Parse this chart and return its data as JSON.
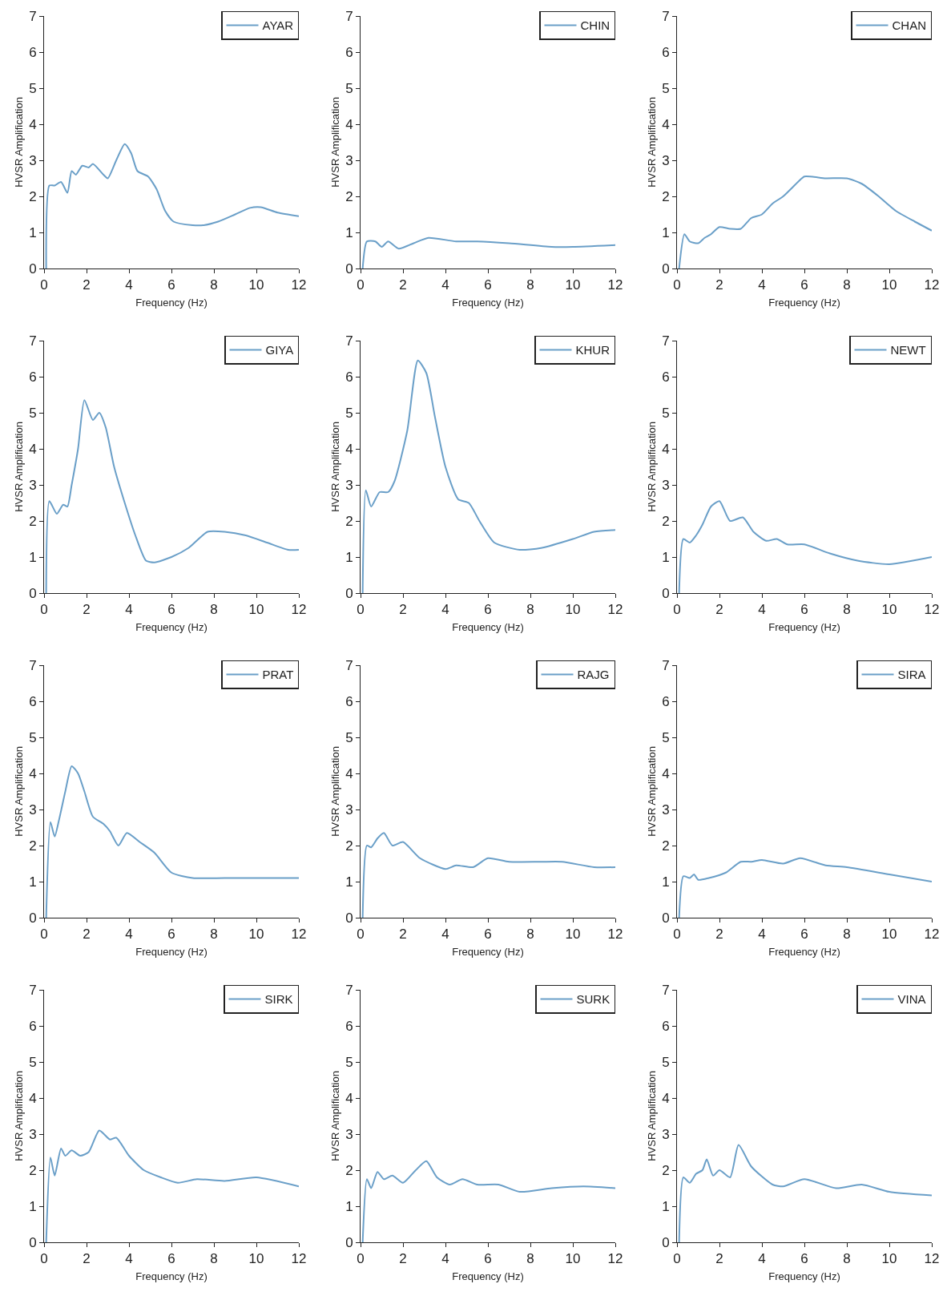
{
  "chart_data": [
    {
      "type": "line",
      "xlabel": "Frequency (Hz)",
      "ylabel": "HVSR Amplification",
      "xlim": [
        0,
        12
      ],
      "xticks": [
        0,
        2,
        4,
        6,
        8,
        10,
        12
      ],
      "ylim": [
        0,
        7
      ],
      "yticks": [
        0,
        1,
        2,
        3,
        4,
        5,
        6,
        7
      ],
      "legend": "top right",
      "series": [
        {
          "name": "AYAR",
          "color": "#6a9fc8",
          "x": [
            0.1,
            0.25,
            0.5,
            0.8,
            1.1,
            1.3,
            1.5,
            1.8,
            2.1,
            2.3,
            2.8,
            3.0,
            3.4,
            3.8,
            4.1,
            4.4,
            4.9,
            5.3,
            5.7,
            6.1,
            7,
            7.5,
            8.2,
            9,
            9.7,
            10.2,
            11,
            12
          ],
          "values": [
            0,
            2.3,
            2.3,
            2.4,
            2.1,
            2.7,
            2.6,
            2.85,
            2.8,
            2.9,
            2.6,
            2.5,
            3.0,
            3.45,
            3.2,
            2.7,
            2.55,
            2.2,
            1.6,
            1.3,
            1.2,
            1.2,
            1.3,
            1.5,
            1.68,
            1.7,
            1.55,
            1.45
          ]
        }
      ]
    },
    {
      "type": "line",
      "xlabel": "Frequency (Hz)",
      "ylabel": "HVSR Amplification",
      "xlim": [
        0,
        12
      ],
      "xticks": [
        0,
        2,
        4,
        6,
        8,
        10,
        12
      ],
      "ylim": [
        0,
        7
      ],
      "yticks": [
        0,
        1,
        2,
        3,
        4,
        5,
        6,
        7
      ],
      "legend": "top right",
      "series": [
        {
          "name": "CHIN",
          "color": "#6a9fc8",
          "x": [
            0.1,
            0.3,
            0.7,
            1.0,
            1.3,
            1.8,
            2.5,
            3.2,
            4.5,
            5.5,
            7,
            9,
            10,
            12
          ],
          "values": [
            0,
            0.75,
            0.75,
            0.6,
            0.75,
            0.55,
            0.7,
            0.85,
            0.75,
            0.75,
            0.7,
            0.6,
            0.6,
            0.65
          ]
        }
      ]
    },
    {
      "type": "line",
      "xlabel": "Frequency (Hz)",
      "ylabel": "HVSR Amplification",
      "xlim": [
        0,
        12
      ],
      "xticks": [
        0,
        2,
        4,
        6,
        8,
        10,
        12
      ],
      "ylim": [
        0,
        7
      ],
      "yticks": [
        0,
        1,
        2,
        3,
        4,
        5,
        6,
        7
      ],
      "legend": "top right",
      "series": [
        {
          "name": "CHAN",
          "color": "#6a9fc8",
          "x": [
            0.1,
            0.35,
            0.6,
            1.0,
            1.3,
            1.6,
            2.0,
            2.5,
            3.0,
            3.5,
            4,
            4.5,
            5,
            5.7,
            6,
            7,
            8,
            8.7,
            9.5,
            10.3,
            11.2,
            12
          ],
          "values": [
            0,
            0.95,
            0.75,
            0.7,
            0.85,
            0.95,
            1.15,
            1.1,
            1.1,
            1.4,
            1.5,
            1.8,
            2.0,
            2.4,
            2.55,
            2.5,
            2.5,
            2.35,
            2.0,
            1.6,
            1.3,
            1.05
          ]
        }
      ]
    },
    {
      "type": "line",
      "xlabel": "Frequency (Hz)",
      "ylabel": "HVSR Amplification",
      "xlim": [
        0,
        12
      ],
      "xticks": [
        0,
        2,
        4,
        6,
        8,
        10,
        12
      ],
      "ylim": [
        0,
        7
      ],
      "yticks": [
        0,
        1,
        2,
        3,
        4,
        5,
        6,
        7
      ],
      "legend": "top right",
      "series": [
        {
          "name": "GIYA",
          "color": "#6a9fc8",
          "x": [
            0.1,
            0.25,
            0.6,
            0.9,
            1.1,
            1.3,
            1.6,
            1.9,
            2.3,
            2.6,
            2.9,
            3.3,
            3.8,
            4.3,
            4.8,
            5.2,
            6,
            6.8,
            7.7,
            8.5,
            9.5,
            10.5,
            11.5,
            12
          ],
          "values": [
            0,
            2.55,
            2.2,
            2.45,
            2.4,
            3.0,
            4.0,
            5.35,
            4.8,
            5.0,
            4.6,
            3.5,
            2.5,
            1.6,
            0.9,
            0.85,
            1.0,
            1.25,
            1.7,
            1.7,
            1.6,
            1.4,
            1.2,
            1.2
          ]
        }
      ]
    },
    {
      "type": "line",
      "xlabel": "Frequency (Hz)",
      "ylabel": "HVSR Amplification",
      "xlim": [
        0,
        12
      ],
      "xticks": [
        0,
        2,
        4,
        6,
        8,
        10,
        12
      ],
      "ylim": [
        0,
        7
      ],
      "yticks": [
        0,
        1,
        2,
        3,
        4,
        5,
        6,
        7
      ],
      "legend": "top right",
      "series": [
        {
          "name": "KHUR",
          "color": "#6a9fc8",
          "x": [
            0.1,
            0.25,
            0.5,
            0.9,
            1.3,
            1.6,
            2.2,
            2.7,
            3.1,
            3.5,
            4.0,
            4.6,
            5.1,
            5.6,
            6.3,
            7.5,
            8.5,
            10,
            11,
            12
          ],
          "values": [
            0,
            2.85,
            2.4,
            2.8,
            2.8,
            3.1,
            4.5,
            6.45,
            6.1,
            4.9,
            3.5,
            2.6,
            2.5,
            2.0,
            1.4,
            1.2,
            1.25,
            1.5,
            1.7,
            1.75
          ]
        }
      ]
    },
    {
      "type": "line",
      "xlabel": "Frequency (Hz)",
      "ylabel": "HVSR Amplification",
      "xlim": [
        0,
        12
      ],
      "xticks": [
        0,
        2,
        4,
        6,
        8,
        10,
        12
      ],
      "ylim": [
        0,
        7
      ],
      "yticks": [
        0,
        1,
        2,
        3,
        4,
        5,
        6,
        7
      ],
      "legend": "top right",
      "series": [
        {
          "name": "NEWT",
          "color": "#6a9fc8",
          "x": [
            0.1,
            0.3,
            0.6,
            0.9,
            1.2,
            1.6,
            2.0,
            2.5,
            3.1,
            3.6,
            4.2,
            4.7,
            5.2,
            6,
            7.2,
            8.5,
            10,
            12
          ],
          "values": [
            0,
            1.5,
            1.4,
            1.6,
            1.9,
            2.4,
            2.55,
            2.0,
            2.1,
            1.7,
            1.45,
            1.5,
            1.35,
            1.35,
            1.1,
            0.9,
            0.8,
            1.0
          ]
        }
      ]
    },
    {
      "type": "line",
      "xlabel": "Frequency (Hz)",
      "ylabel": "HVSR Amplification",
      "xlim": [
        0,
        12
      ],
      "xticks": [
        0,
        2,
        4,
        6,
        8,
        10,
        12
      ],
      "ylim": [
        0,
        7
      ],
      "yticks": [
        0,
        1,
        2,
        3,
        4,
        5,
        6,
        7
      ],
      "legend": "top right",
      "series": [
        {
          "name": "PRAT",
          "color": "#6a9fc8",
          "x": [
            0.1,
            0.3,
            0.5,
            0.7,
            1.0,
            1.3,
            1.6,
            1.9,
            2.3,
            2.8,
            3.1,
            3.5,
            3.9,
            4.5,
            5.2,
            6,
            7,
            8.5,
            10,
            12
          ],
          "values": [
            0,
            2.65,
            2.25,
            2.7,
            3.5,
            4.2,
            4.0,
            3.5,
            2.8,
            2.6,
            2.4,
            2.0,
            2.35,
            2.1,
            1.8,
            1.25,
            1.1,
            1.1,
            1.1,
            1.1
          ]
        }
      ]
    },
    {
      "type": "line",
      "xlabel": "Frequency (Hz)",
      "ylabel": "HVSR Amplification",
      "xlim": [
        0,
        12
      ],
      "xticks": [
        0,
        2,
        4,
        6,
        8,
        10,
        12
      ],
      "ylim": [
        0,
        7
      ],
      "yticks": [
        0,
        1,
        2,
        3,
        4,
        5,
        6,
        7
      ],
      "legend": "top right",
      "series": [
        {
          "name": "RAJG",
          "color": "#6a9fc8",
          "x": [
            0.1,
            0.3,
            0.5,
            0.8,
            1.1,
            1.5,
            2.0,
            2.8,
            4.0,
            4.5,
            5.3,
            6.0,
            7.0,
            8.5,
            9.5,
            11,
            12
          ],
          "values": [
            0,
            2.0,
            1.95,
            2.2,
            2.35,
            2.0,
            2.1,
            1.65,
            1.35,
            1.45,
            1.4,
            1.65,
            1.55,
            1.55,
            1.55,
            1.4,
            1.4
          ]
        }
      ]
    },
    {
      "type": "line",
      "xlabel": "Frequency (Hz)",
      "ylabel": "HVSR Amplification",
      "xlim": [
        0,
        12
      ],
      "xticks": [
        0,
        2,
        4,
        6,
        8,
        10,
        12
      ],
      "ylim": [
        0,
        7
      ],
      "yticks": [
        0,
        1,
        2,
        3,
        4,
        5,
        6,
        7
      ],
      "legend": "top right",
      "series": [
        {
          "name": "SIRA",
          "color": "#6a9fc8",
          "x": [
            0.1,
            0.3,
            0.6,
            0.8,
            1.0,
            1.5,
            2.3,
            3.0,
            3.5,
            4,
            5,
            5.8,
            7,
            8,
            10,
            12
          ],
          "values": [
            0,
            1.15,
            1.1,
            1.2,
            1.05,
            1.1,
            1.25,
            1.55,
            1.55,
            1.6,
            1.5,
            1.65,
            1.45,
            1.4,
            1.2,
            1.0
          ]
        }
      ]
    },
    {
      "type": "line",
      "xlabel": "Frequency (Hz)",
      "ylabel": "HVSR Amplification",
      "xlim": [
        0,
        12
      ],
      "xticks": [
        0,
        2,
        4,
        6,
        8,
        10,
        12
      ],
      "ylim": [
        0,
        7
      ],
      "yticks": [
        0,
        1,
        2,
        3,
        4,
        5,
        6,
        7
      ],
      "legend": "top right",
      "series": [
        {
          "name": "SIRK",
          "color": "#6a9fc8",
          "x": [
            0.1,
            0.3,
            0.5,
            0.8,
            1.0,
            1.3,
            1.7,
            2.1,
            2.6,
            3.1,
            3.4,
            4.0,
            4.7,
            5.5,
            6.3,
            7.2,
            8.5,
            10,
            12
          ],
          "values": [
            0,
            2.35,
            1.85,
            2.6,
            2.4,
            2.55,
            2.4,
            2.5,
            3.1,
            2.85,
            2.9,
            2.4,
            2.0,
            1.8,
            1.65,
            1.75,
            1.7,
            1.8,
            1.55
          ]
        }
      ]
    },
    {
      "type": "line",
      "xlabel": "Frequency (Hz)",
      "ylabel": "HVSR Amplification",
      "xlim": [
        0,
        12
      ],
      "xticks": [
        0,
        2,
        4,
        6,
        8,
        10,
        12
      ],
      "ylim": [
        0,
        7
      ],
      "yticks": [
        0,
        1,
        2,
        3,
        4,
        5,
        6,
        7
      ],
      "legend": "top right",
      "series": [
        {
          "name": "SURK",
          "color": "#6a9fc8",
          "x": [
            0.1,
            0.3,
            0.5,
            0.8,
            1.1,
            1.5,
            2.0,
            2.6,
            3.1,
            3.6,
            4.2,
            4.8,
            5.5,
            6.5,
            7.5,
            9,
            10.5,
            12
          ],
          "values": [
            0,
            1.75,
            1.5,
            1.95,
            1.75,
            1.85,
            1.65,
            2.0,
            2.25,
            1.8,
            1.6,
            1.75,
            1.6,
            1.6,
            1.4,
            1.5,
            1.55,
            1.5
          ]
        }
      ]
    },
    {
      "type": "line",
      "xlabel": "Frequency (Hz)",
      "ylabel": "HVSR Amplification",
      "xlim": [
        0,
        12
      ],
      "xticks": [
        0,
        2,
        4,
        6,
        8,
        10,
        12
      ],
      "ylim": [
        0,
        7
      ],
      "yticks": [
        0,
        1,
        2,
        3,
        4,
        5,
        6,
        7
      ],
      "legend": "top right",
      "series": [
        {
          "name": "VINA",
          "color": "#6a9fc8",
          "x": [
            0.1,
            0.3,
            0.6,
            0.9,
            1.2,
            1.4,
            1.7,
            2.0,
            2.5,
            2.9,
            3.5,
            4.5,
            5,
            6,
            7.5,
            8.7,
            10,
            12
          ],
          "values": [
            0,
            1.8,
            1.65,
            1.9,
            2.0,
            2.3,
            1.85,
            2.0,
            1.8,
            2.7,
            2.1,
            1.6,
            1.55,
            1.75,
            1.5,
            1.6,
            1.4,
            1.3
          ]
        }
      ]
    }
  ]
}
